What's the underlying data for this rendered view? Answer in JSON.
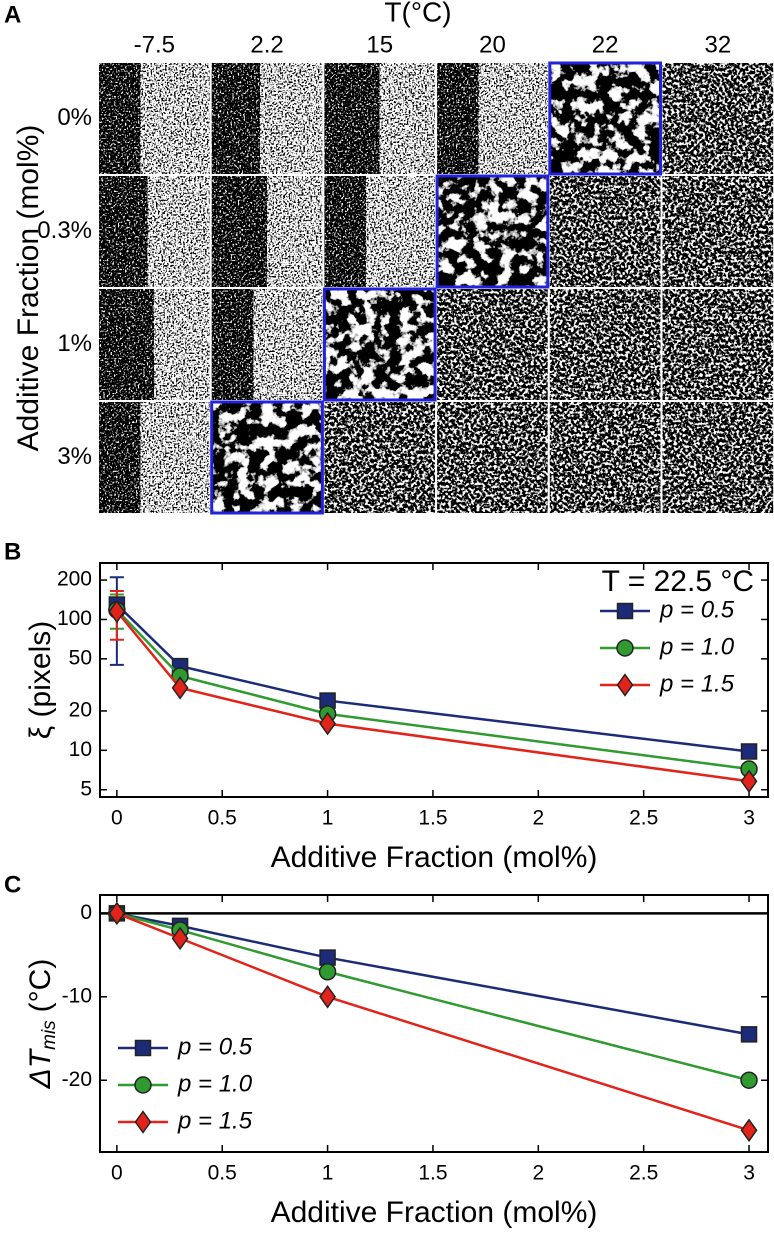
{
  "panel_a": {
    "label": "A",
    "x_title": "T(°C)",
    "columns": [
      "-7.5",
      "2.2",
      "15",
      "20",
      "22",
      "32"
    ],
    "y_title": "Additive Fraction (mol%)",
    "rows": [
      "0%",
      "0.3%",
      "1%",
      "3%"
    ]
  },
  "chart_data": [
    {
      "type": "line",
      "panel": "B",
      "annotation": "T = 22.5 °C",
      "xlabel": "Additive Fraction (mol%)",
      "ylabel": "ξ (pixels)",
      "log_y": true,
      "legend": "upper right",
      "grid": false,
      "x": [
        0,
        0.3,
        1,
        3
      ],
      "xlim": [
        -0.08,
        3.09
      ],
      "xticks": [
        0,
        0.5,
        1,
        1.5,
        2,
        2.5,
        3
      ],
      "ylim": [
        4.4,
        270
      ],
      "yticks": [
        5,
        10,
        20,
        50,
        100,
        200
      ],
      "series": [
        {
          "name": "p = 0.5",
          "color": "#1c2b78",
          "marker": "square",
          "values": [
            130,
            44,
            24,
            9.8
          ],
          "error_bars": [
            [
              45,
              210
            ],
            null,
            null,
            null
          ]
        },
        {
          "name": "p = 1.0",
          "color": "#2f9a2f",
          "marker": "circle",
          "values": [
            118,
            37,
            19,
            7.2
          ],
          "error_bars": [
            [
              85,
              155
            ],
            null,
            null,
            null
          ]
        },
        {
          "name": "p = 1.5",
          "color": "#e2231a",
          "marker": "diamond",
          "values": [
            115,
            30,
            16,
            5.8
          ],
          "error_bars": [
            [
              70,
              165
            ],
            null,
            null,
            null
          ]
        }
      ]
    },
    {
      "type": "line",
      "panel": "C",
      "xlabel": "Additive Fraction (mol%)",
      "ylabel": "ΔT",
      "ylabel_sub": "mis",
      "ylabel_unit": "(°C)",
      "log_y": false,
      "legend": "lower left",
      "grid": false,
      "hline": 0,
      "x": [
        0,
        0.3,
        1,
        3
      ],
      "xlim": [
        -0.08,
        3.09
      ],
      "xticks": [
        0,
        0.5,
        1,
        1.5,
        2,
        2.5,
        3
      ],
      "ylim": [
        -28.6,
        2.2
      ],
      "yticks": [
        0,
        -10,
        -20
      ],
      "series": [
        {
          "name": "p = 0.5",
          "color": "#1c2b78",
          "marker": "square",
          "values": [
            0,
            -1.5,
            -5.3,
            -14.5
          ]
        },
        {
          "name": "p = 1.0",
          "color": "#2f9a2f",
          "marker": "circle",
          "values": [
            0,
            -2,
            -7,
            -20
          ]
        },
        {
          "name": "p = 1.5",
          "color": "#e2231a",
          "marker": "diamond",
          "values": [
            0,
            -3,
            -10,
            -26
          ]
        }
      ]
    }
  ]
}
